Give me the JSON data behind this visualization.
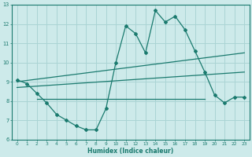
{
  "xlabel": "Humidex (Indice chaleur)",
  "xlim": [
    -0.5,
    23.5
  ],
  "ylim": [
    6,
    13
  ],
  "xticks": [
    0,
    1,
    2,
    3,
    4,
    5,
    6,
    7,
    8,
    9,
    10,
    11,
    12,
    13,
    14,
    15,
    16,
    17,
    18,
    19,
    20,
    21,
    22,
    23
  ],
  "yticks": [
    6,
    7,
    8,
    9,
    10,
    11,
    12,
    13
  ],
  "background_color": "#cdeaea",
  "grid_color": "#aad4d4",
  "line_color": "#1a7a6e",
  "series1_x": [
    0,
    1,
    2,
    3,
    4,
    5,
    6,
    7,
    8,
    9,
    10,
    11,
    12,
    13,
    14,
    15,
    16,
    17,
    18,
    19,
    20,
    21,
    22,
    23
  ],
  "series1_y": [
    9.1,
    8.9,
    8.4,
    7.9,
    7.3,
    7.0,
    6.7,
    6.5,
    6.5,
    7.6,
    10.0,
    11.9,
    11.5,
    10.5,
    12.7,
    12.1,
    12.4,
    11.7,
    10.6,
    9.5,
    8.3,
    7.9,
    8.2,
    8.2
  ],
  "series2_x": [
    0,
    23
  ],
  "series2_y": [
    9.0,
    10.5
  ],
  "series3_x": [
    0,
    23
  ],
  "series3_y": [
    8.7,
    9.5
  ],
  "series4_x": [
    2,
    19
  ],
  "series4_y": [
    8.1,
    8.1
  ]
}
